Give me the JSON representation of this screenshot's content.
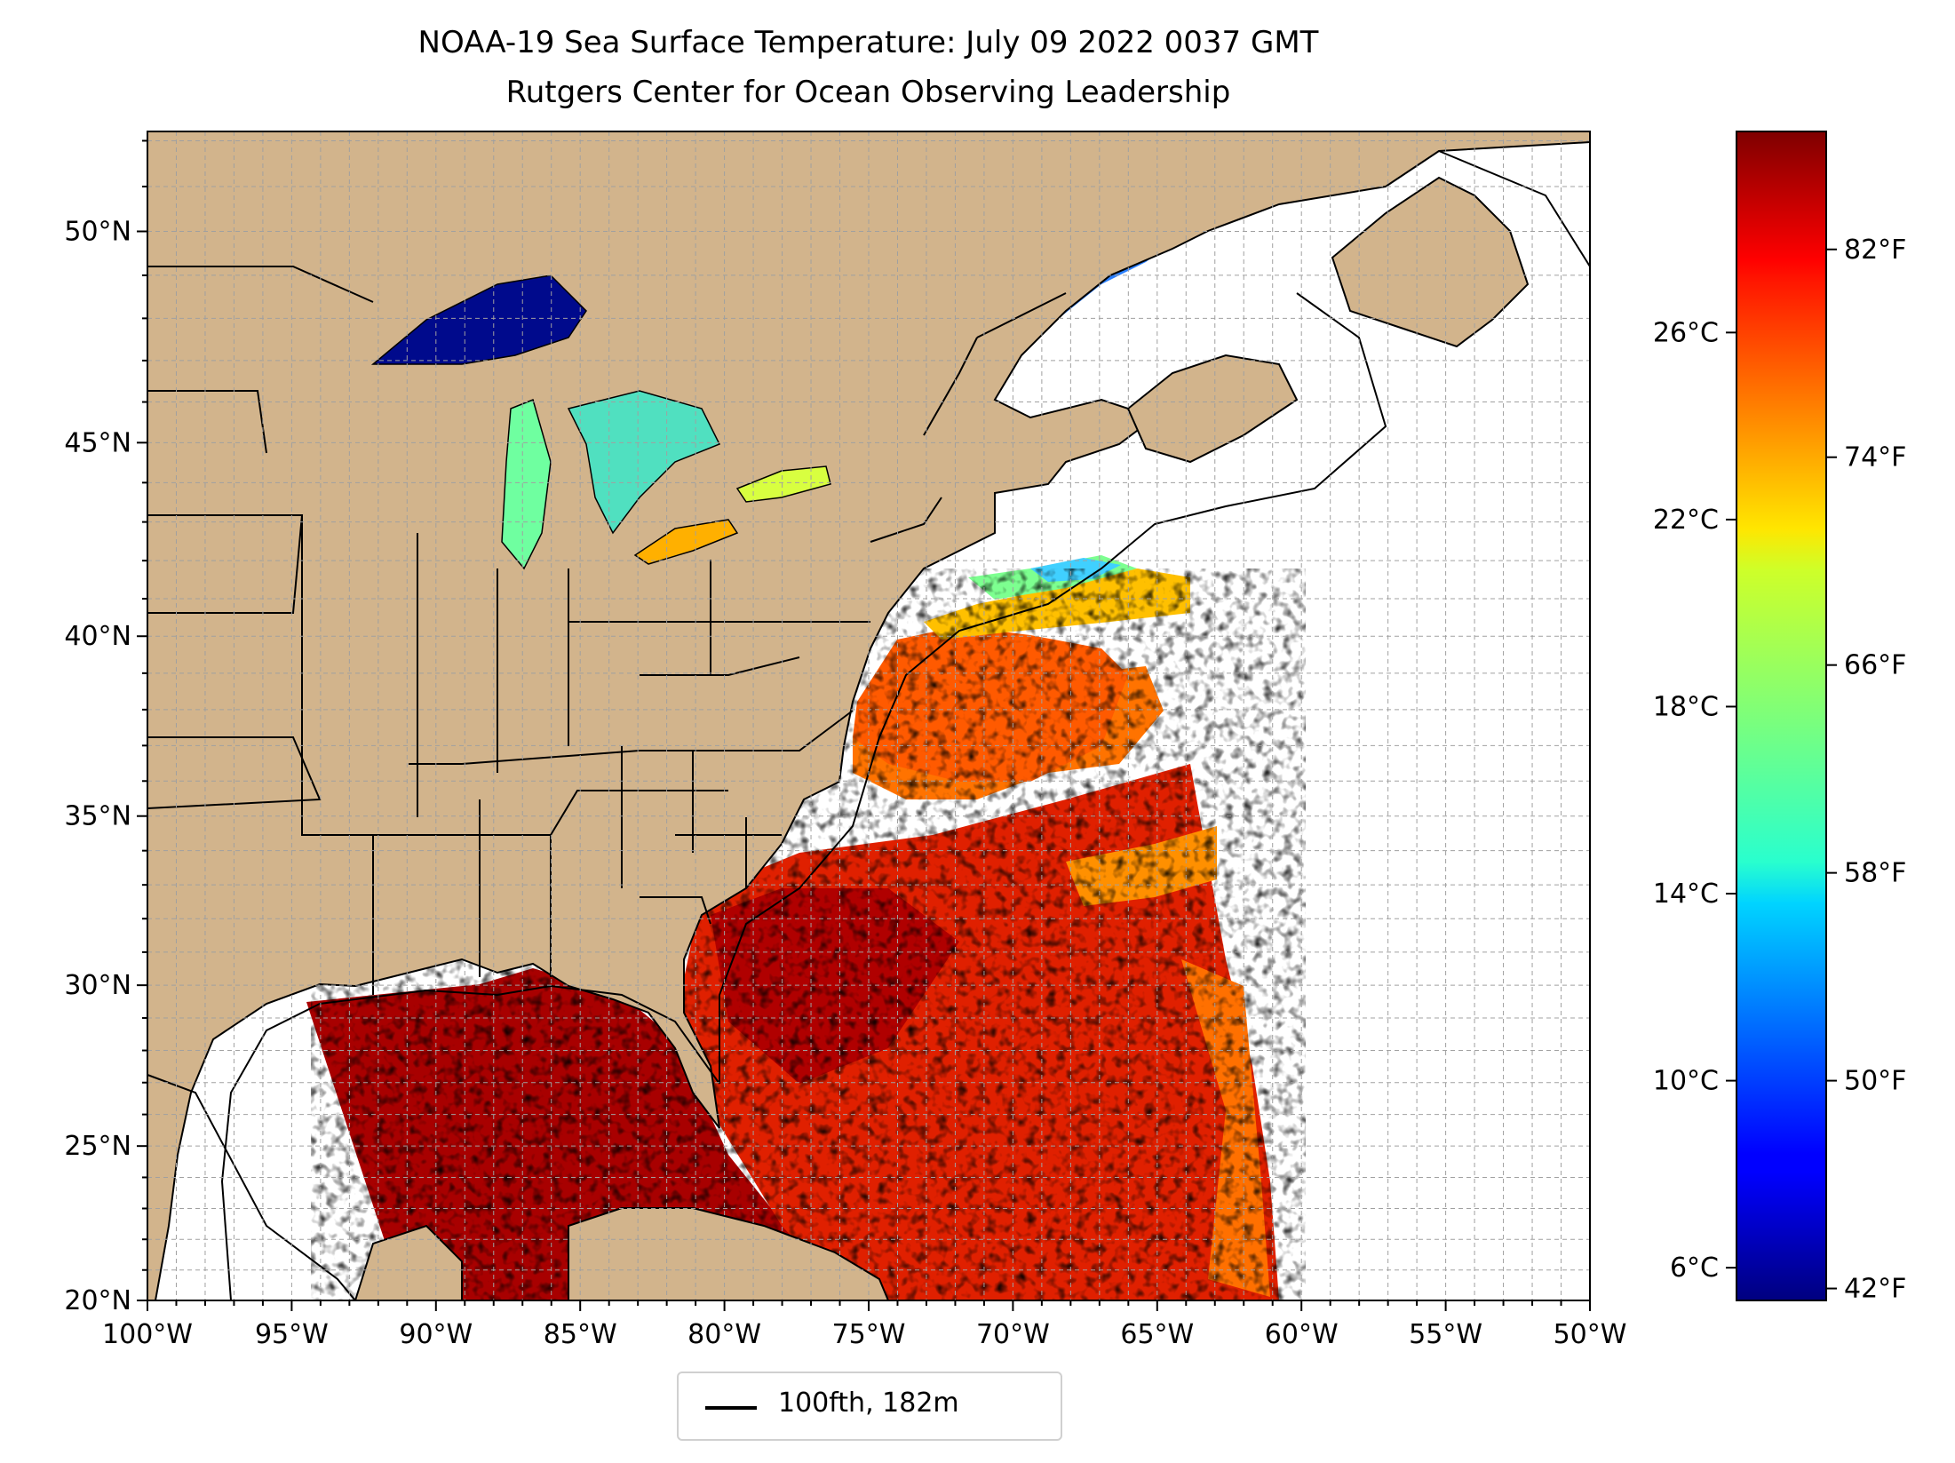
{
  "header": {
    "title": "NOAA-19 Sea Surface Temperature: July 09 2022 0037 GMT",
    "subtitle": "Rutgers Center for Ocean Observing Leadership"
  },
  "map": {
    "extent": {
      "lon_min": -100,
      "lon_max": -50,
      "lat_min": 20,
      "lat_max": 52.2
    },
    "lat_ticks": [
      {
        "value": 20,
        "label": "20°N"
      },
      {
        "value": 25,
        "label": "25°N"
      },
      {
        "value": 30,
        "label": "30°N"
      },
      {
        "value": 35,
        "label": "35°N"
      },
      {
        "value": 40,
        "label": "40°N"
      },
      {
        "value": 45,
        "label": "45°N"
      },
      {
        "value": 50,
        "label": "50°N"
      }
    ],
    "lon_ticks": [
      {
        "value": -100,
        "label": "100°W"
      },
      {
        "value": -95,
        "label": "95°W"
      },
      {
        "value": -90,
        "label": "90°W"
      },
      {
        "value": -85,
        "label": "85°W"
      },
      {
        "value": -80,
        "label": "80°W"
      },
      {
        "value": -75,
        "label": "75°W"
      },
      {
        "value": -70,
        "label": "70°W"
      },
      {
        "value": -65,
        "label": "65°W"
      },
      {
        "value": -60,
        "label": "60°W"
      },
      {
        "value": -55,
        "label": "55°W"
      },
      {
        "value": -50,
        "label": "50°W"
      }
    ],
    "grid": "dashed 1° graticule",
    "colors": {
      "land": "#d2b48c",
      "lakes": "#9ab8e6",
      "ocean_no_data": "#ffffff",
      "borders": "#000000"
    }
  },
  "colorbar": {
    "cmap": "jet",
    "celsius_range": [
      5.3,
      30.3
    ],
    "celsius_ticks": [
      {
        "value": 6,
        "label": "6°C"
      },
      {
        "value": 10,
        "label": "10°C"
      },
      {
        "value": 14,
        "label": "14°C"
      },
      {
        "value": 18,
        "label": "18°C"
      },
      {
        "value": 22,
        "label": "22°C"
      },
      {
        "value": 26,
        "label": "26°C"
      }
    ],
    "fahrenheit_ticks": [
      {
        "value": 42,
        "label": "42°F"
      },
      {
        "value": 50,
        "label": "50°F"
      },
      {
        "value": 58,
        "label": "58°F"
      },
      {
        "value": 66,
        "label": "66°F"
      },
      {
        "value": 74,
        "label": "74°F"
      },
      {
        "value": 82,
        "label": "82°F"
      }
    ]
  },
  "legend": {
    "label": "100fth, 182m",
    "line_color": "#000000"
  }
}
